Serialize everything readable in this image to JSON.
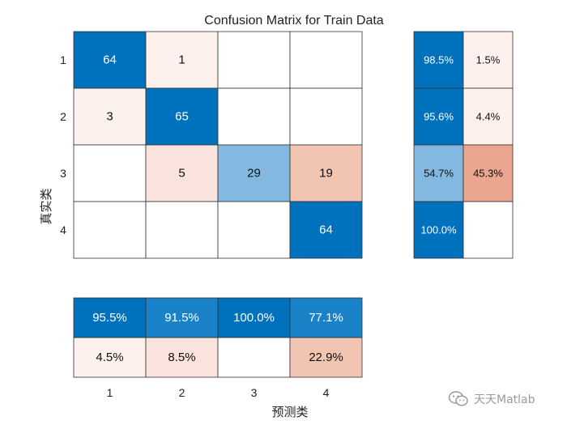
{
  "chart_data": {
    "type": "heatmap",
    "title": "Confusion Matrix for Train Data",
    "xlabel": "预测类",
    "ylabel": "真实类",
    "classes": [
      "1",
      "2",
      "3",
      "4"
    ],
    "matrix": [
      [
        64,
        1,
        0,
        0
      ],
      [
        3,
        65,
        0,
        0
      ],
      [
        0,
        5,
        29,
        19
      ],
      [
        0,
        0,
        0,
        64
      ]
    ],
    "row_summary": [
      {
        "correct": "98.5%",
        "incorrect": "1.5%"
      },
      {
        "correct": "95.6%",
        "incorrect": "4.4%"
      },
      {
        "correct": "54.7%",
        "incorrect": "45.3%"
      },
      {
        "correct": "100.0%",
        "incorrect": ""
      }
    ],
    "column_summary": [
      {
        "correct": "95.5%",
        "incorrect": "4.5%"
      },
      {
        "correct": "91.5%",
        "incorrect": "8.5%"
      },
      {
        "correct": "100.0%",
        "incorrect": ""
      },
      {
        "correct": "77.1%",
        "incorrect": "22.9%"
      }
    ],
    "colors": {
      "blue_dark": "#0072bd",
      "blue_mid": "#1a82c9",
      "blue_light": "#83b9e0",
      "pink_pale": "#fdf1ee",
      "pink_light": "#f9e3dc",
      "salmon": "#f2c4b2",
      "salmon_dark": "#eaa68e"
    }
  },
  "watermark": {
    "text": "天天Matlab",
    "icon": "wechat-icon"
  }
}
